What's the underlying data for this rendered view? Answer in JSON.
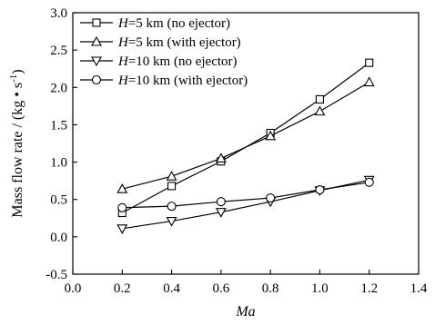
{
  "chart_data": {
    "type": "line",
    "xlabel": "Ma",
    "ylabel": "Mass flow rate / (kg • s",
    "ylabel_sup": "-1",
    "ylabel_tail": ")",
    "xlim": [
      0.0,
      1.4
    ],
    "ylim": [
      -0.5,
      3.0
    ],
    "xticks": [
      "0.0",
      "0.2",
      "0.4",
      "0.6",
      "0.8",
      "1.0",
      "1.2",
      "1.4"
    ],
    "yticks": [
      "-0.5",
      "0.0",
      "0.5",
      "1.0",
      "1.5",
      "2.0",
      "2.5",
      "3.0"
    ],
    "grid": false,
    "legend_position": "top-left",
    "x": [
      0.2,
      0.4,
      0.6,
      0.8,
      1.0,
      1.2
    ],
    "series": [
      {
        "name_var": "H",
        "name_rest": "=5 km (no ejector)",
        "marker": "square",
        "values": [
          0.32,
          0.68,
          1.01,
          1.39,
          1.84,
          2.33
        ]
      },
      {
        "name_var": "H",
        "name_rest": "=5 km (with ejector)",
        "marker": "triangle-up",
        "values": [
          0.64,
          0.81,
          1.05,
          1.35,
          1.68,
          2.07
        ]
      },
      {
        "name_var": "H",
        "name_rest": "=10 km (no ejector)",
        "marker": "triangle-down",
        "values": [
          0.11,
          0.21,
          0.33,
          0.47,
          0.62,
          0.76
        ]
      },
      {
        "name_var": "H",
        "name_rest": "=10 km (with ejector)",
        "marker": "circle",
        "values": [
          0.39,
          0.41,
          0.47,
          0.52,
          0.63,
          0.73
        ]
      }
    ]
  }
}
